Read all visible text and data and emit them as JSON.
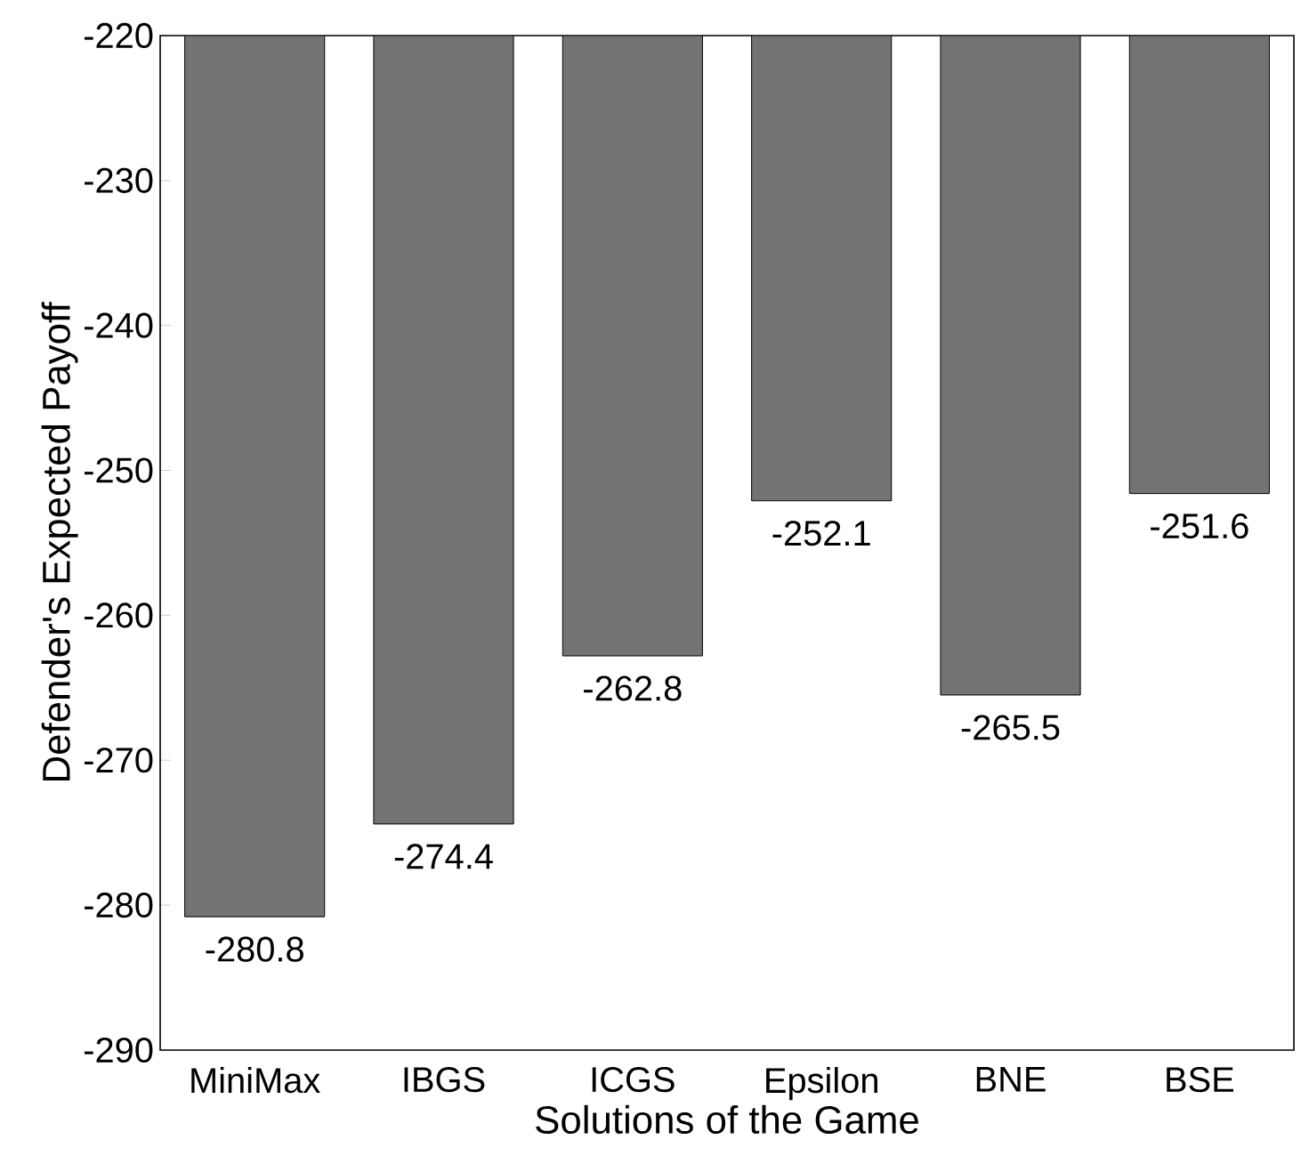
{
  "chart_data": {
    "type": "bar",
    "xlabel": "Solutions of the Game",
    "ylabel": "Defender's Expected Payoff",
    "categories": [
      "MiniMax",
      "IBGS",
      "ICGS",
      "Epsilon",
      "BNE",
      "BSE"
    ],
    "values": [
      -280.8,
      -274.4,
      -262.8,
      -252.1,
      -265.5,
      -251.6
    ],
    "color": "#737373",
    "ylim": [
      -290,
      -220
    ],
    "yticks": [
      -290,
      -280,
      -270,
      -260,
      -250,
      -240,
      -230,
      -220
    ],
    "data_labels": true
  }
}
